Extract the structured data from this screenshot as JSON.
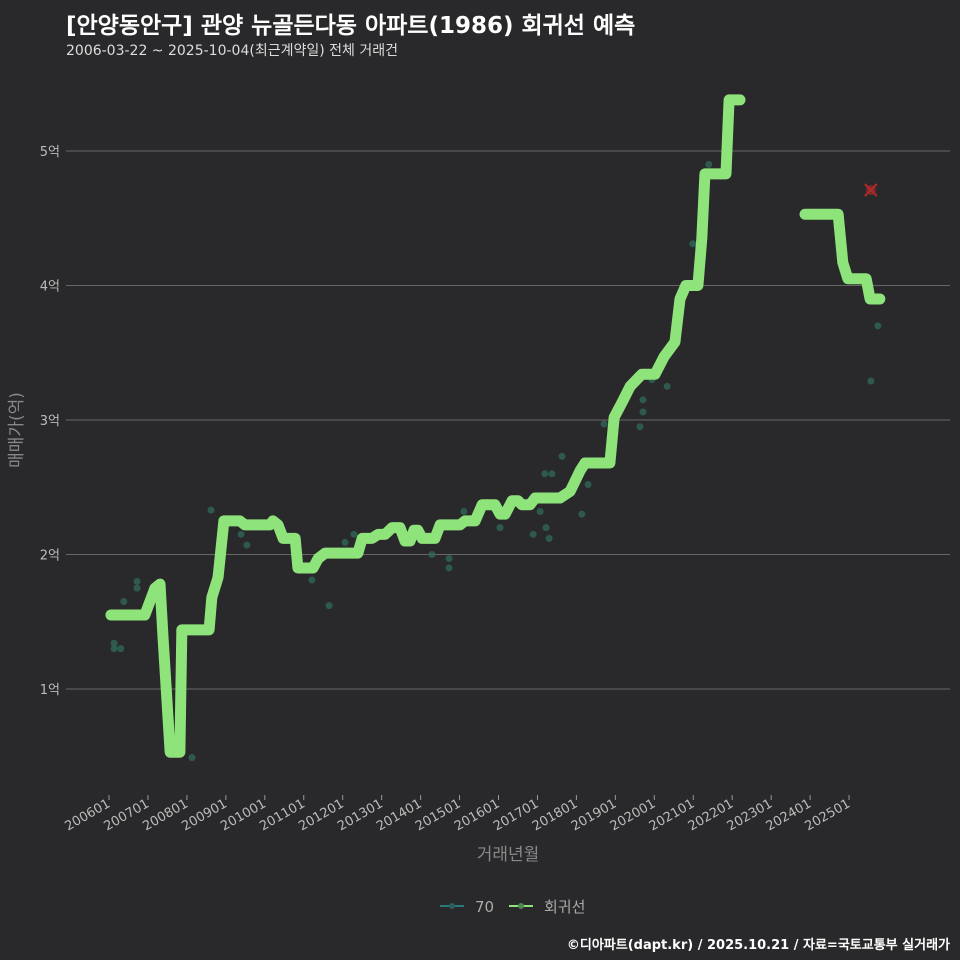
{
  "title": "[안양동안구] 관양 뉴골든다동 아파트(1986) 회귀선 예측",
  "subtitle": "2006-03-22 ~ 2025-10-04(최근계약일) 전체 거래건",
  "footer": "©디아파트(dapt.kr) / 2025.10.21 / 자료=국토교통부 실거래가",
  "chart_data": {
    "type": "line",
    "xlabel": "거래년월",
    "ylabel": "매매가(억)",
    "x_ticks": [
      "200601",
      "200701",
      "200801",
      "200901",
      "201001",
      "201101",
      "201201",
      "201301",
      "201401",
      "201501",
      "201601",
      "201701",
      "201801",
      "201901",
      "202001",
      "202101",
      "202201",
      "202301",
      "202401",
      "202501"
    ],
    "y_ticks": [
      {
        "v": 1,
        "label": "1억"
      },
      {
        "v": 2,
        "label": "2억"
      },
      {
        "v": 3,
        "label": "3억"
      },
      {
        "v": 4,
        "label": "4억"
      },
      {
        "v": 5,
        "label": "5억"
      }
    ],
    "xlim": [
      2005.5,
      2026.2
    ],
    "ylim": [
      0.25,
      5.6
    ],
    "legend": [
      {
        "label": "70",
        "color": "#2a7a7a"
      },
      {
        "label": "회귀선",
        "color": "#8ee47a"
      }
    ],
    "colors": {
      "line": "#8ee47a",
      "points": "#2f6a5c",
      "predict": "#b02a2a"
    },
    "regression": [
      [
        [
          2006.05,
          1.55
        ],
        [
          2006.92,
          1.55
        ],
        [
          2007.05,
          1.65
        ],
        [
          2007.18,
          1.75
        ],
        [
          2007.31,
          1.78
        ],
        [
          2007.39,
          1.37
        ],
        [
          2007.57,
          0.53
        ],
        [
          2007.82,
          0.53
        ],
        [
          2007.87,
          1.44
        ],
        [
          2008.57,
          1.44
        ],
        [
          2008.64,
          1.68
        ],
        [
          2008.8,
          1.83
        ],
        [
          2008.95,
          2.25
        ],
        [
          2009.36,
          2.25
        ],
        [
          2009.49,
          2.22
        ],
        [
          2010.13,
          2.22
        ],
        [
          2010.21,
          2.25
        ],
        [
          2010.34,
          2.22
        ],
        [
          2010.47,
          2.12
        ],
        [
          2010.78,
          2.12
        ],
        [
          2010.85,
          1.9
        ],
        [
          2011.24,
          1.9
        ],
        [
          2011.37,
          1.97
        ],
        [
          2011.55,
          2.01
        ],
        [
          2012.39,
          2.01
        ],
        [
          2012.5,
          2.12
        ],
        [
          2012.75,
          2.12
        ],
        [
          2012.91,
          2.15
        ],
        [
          2013.09,
          2.15
        ],
        [
          2013.27,
          2.2
        ],
        [
          2013.47,
          2.2
        ],
        [
          2013.6,
          2.1
        ],
        [
          2013.73,
          2.1
        ],
        [
          2013.83,
          2.18
        ],
        [
          2013.93,
          2.18
        ],
        [
          2014.04,
          2.12
        ],
        [
          2014.37,
          2.12
        ],
        [
          2014.5,
          2.22
        ],
        [
          2015.01,
          2.22
        ],
        [
          2015.14,
          2.25
        ],
        [
          2015.4,
          2.25
        ],
        [
          2015.58,
          2.37
        ],
        [
          2015.91,
          2.37
        ],
        [
          2016.04,
          2.3
        ],
        [
          2016.17,
          2.3
        ],
        [
          2016.35,
          2.4
        ],
        [
          2016.5,
          2.4
        ],
        [
          2016.6,
          2.37
        ],
        [
          2016.81,
          2.37
        ],
        [
          2016.94,
          2.42
        ],
        [
          2017.58,
          2.42
        ],
        [
          2017.84,
          2.47
        ],
        [
          2018.09,
          2.62
        ],
        [
          2018.22,
          2.68
        ],
        [
          2018.86,
          2.68
        ],
        [
          2018.97,
          3.02
        ],
        [
          2019.17,
          3.13
        ],
        [
          2019.38,
          3.25
        ],
        [
          2019.68,
          3.34
        ],
        [
          2020.02,
          3.34
        ],
        [
          2020.25,
          3.47
        ],
        [
          2020.53,
          3.58
        ],
        [
          2020.66,
          3.9
        ],
        [
          2020.81,
          4.0
        ],
        [
          2021.12,
          4.0
        ],
        [
          2021.22,
          4.35
        ],
        [
          2021.3,
          4.83
        ],
        [
          2021.84,
          4.83
        ],
        [
          2021.92,
          5.38
        ],
        [
          2022.2,
          5.38
        ]
      ],
      [
        [
          2023.87,
          4.53
        ],
        [
          2024.72,
          4.53
        ],
        [
          2024.84,
          4.17
        ],
        [
          2024.97,
          4.05
        ],
        [
          2025.44,
          4.05
        ],
        [
          2025.54,
          3.9
        ],
        [
          2025.79,
          3.9
        ]
      ]
    ],
    "points": [
      [
        2006.13,
        1.34
      ],
      [
        2006.13,
        1.3
      ],
      [
        2006.3,
        1.3
      ],
      [
        2006.38,
        1.65
      ],
      [
        2006.72,
        1.8
      ],
      [
        2006.72,
        1.75
      ],
      [
        2008.13,
        0.49
      ],
      [
        2008.62,
        2.33
      ],
      [
        2009.39,
        2.15
      ],
      [
        2009.54,
        2.07
      ],
      [
        2011.21,
        1.81
      ],
      [
        2011.65,
        1.62
      ],
      [
        2012.06,
        2.09
      ],
      [
        2012.29,
        2.15
      ],
      [
        2014.29,
        2.0
      ],
      [
        2014.73,
        1.97
      ],
      [
        2014.73,
        1.9
      ],
      [
        2015.11,
        2.32
      ],
      [
        2016.04,
        2.2
      ],
      [
        2016.89,
        2.15
      ],
      [
        2017.07,
        2.32
      ],
      [
        2017.19,
        2.6
      ],
      [
        2017.37,
        2.6
      ],
      [
        2017.22,
        2.2
      ],
      [
        2017.3,
        2.12
      ],
      [
        2017.63,
        2.73
      ],
      [
        2018.14,
        2.3
      ],
      [
        2018.3,
        2.52
      ],
      [
        2018.71,
        2.97
      ],
      [
        2019.63,
        2.95
      ],
      [
        2019.71,
        3.15
      ],
      [
        2019.71,
        3.06
      ],
      [
        2019.94,
        3.3
      ],
      [
        2020.33,
        3.25
      ],
      [
        2020.99,
        4.31
      ],
      [
        2021.4,
        4.9
      ],
      [
        2025.56,
        3.29
      ],
      [
        2025.74,
        3.7
      ]
    ],
    "prediction": [
      2025.56,
      4.71
    ]
  }
}
